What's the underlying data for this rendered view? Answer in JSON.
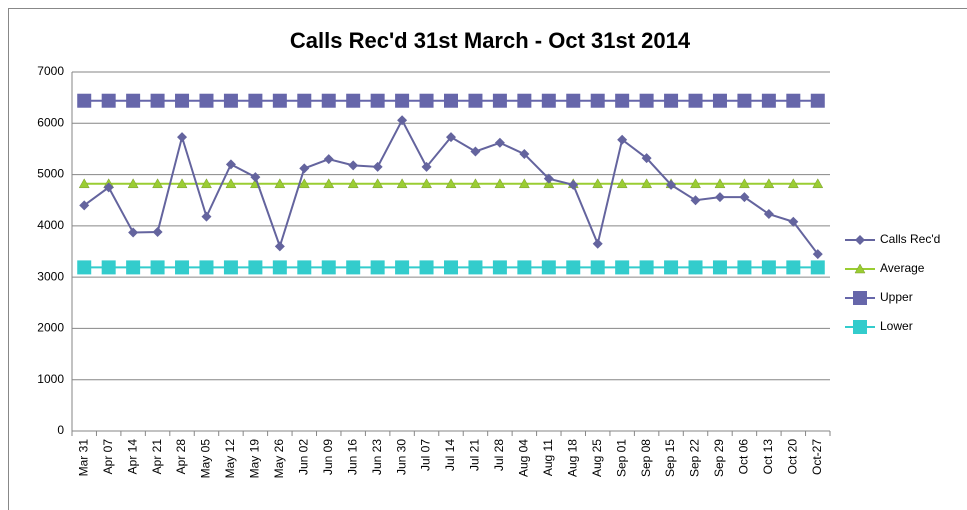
{
  "chart_data": {
    "type": "line",
    "title": "Calls Rec'd 31st March - Oct 31st 2014",
    "categories": [
      "Mar 31",
      "Apr 07",
      "Apr 14",
      "Apr 21",
      "Apr 28",
      "May 05",
      "May 12",
      "May 19",
      "May 26",
      "Jun 02",
      "Jun 09",
      "Jun 16",
      "Jun 23",
      "Jun 30",
      "Jul 07",
      "Jul 14",
      "Jul 21",
      "Jul 28",
      "Aug 04",
      "Aug 11",
      "Aug 18",
      "Aug 25",
      "Sep 01",
      "Sep 08",
      "Sep 15",
      "Sep 22",
      "Sep 29",
      "Oct 06",
      "Oct 13",
      "Oct 20",
      "Oct-27"
    ],
    "series": [
      {
        "name": "Calls Rec'd",
        "color": "#64649e",
        "marker": "diamond",
        "values": [
          4400,
          4750,
          3870,
          3880,
          5730,
          4180,
          5200,
          4950,
          3600,
          5120,
          5300,
          5180,
          5150,
          6060,
          5150,
          5730,
          5450,
          5620,
          5400,
          4920,
          4800,
          3650,
          5680,
          5320,
          4800,
          4500,
          4560,
          4560,
          4230,
          4080,
          3450
        ]
      },
      {
        "name": "Average",
        "color": "#9acd32",
        "marker": "triangle",
        "values": [
          4820,
          4820,
          4820,
          4820,
          4820,
          4820,
          4820,
          4820,
          4820,
          4820,
          4820,
          4820,
          4820,
          4820,
          4820,
          4820,
          4820,
          4820,
          4820,
          4820,
          4820,
          4820,
          4820,
          4820,
          4820,
          4820,
          4820,
          4820,
          4820,
          4820,
          4820
        ]
      },
      {
        "name": "Upper",
        "color": "#6666aa",
        "marker": "square",
        "values": [
          6440,
          6440,
          6440,
          6440,
          6440,
          6440,
          6440,
          6440,
          6440,
          6440,
          6440,
          6440,
          6440,
          6440,
          6440,
          6440,
          6440,
          6440,
          6440,
          6440,
          6440,
          6440,
          6440,
          6440,
          6440,
          6440,
          6440,
          6440,
          6440,
          6440,
          6440
        ]
      },
      {
        "name": "Lower",
        "color": "#33cccc",
        "marker": "square",
        "values": [
          3190,
          3190,
          3190,
          3190,
          3190,
          3190,
          3190,
          3190,
          3190,
          3190,
          3190,
          3190,
          3190,
          3190,
          3190,
          3190,
          3190,
          3190,
          3190,
          3190,
          3190,
          3190,
          3190,
          3190,
          3190,
          3190,
          3190,
          3190,
          3190,
          3190,
          3190
        ]
      }
    ],
    "ylim": [
      0,
      7000
    ],
    "yticks": [
      0,
      1000,
      2000,
      3000,
      4000,
      5000,
      6000,
      7000
    ],
    "grid": true,
    "legend": "right"
  }
}
